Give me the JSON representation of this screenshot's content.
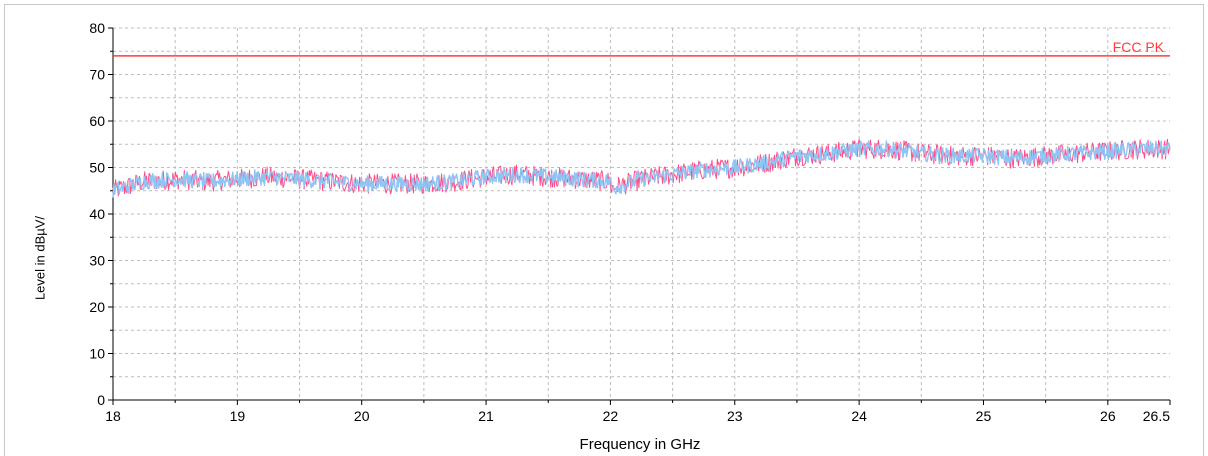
{
  "chart_data": {
    "type": "line",
    "title": "",
    "xlabel": "Frequency in GHz",
    "ylabel": "Level in dBµV/",
    "xlim": [
      18,
      26.5
    ],
    "ylim": [
      0,
      80
    ],
    "x_ticks": [
      18,
      19,
      20,
      21,
      22,
      23,
      24,
      25,
      26,
      26.5
    ],
    "y_ticks": [
      0,
      10,
      20,
      30,
      40,
      50,
      60,
      70,
      80
    ],
    "grid": true,
    "limit_line": {
      "name": "FCC PK",
      "value": 74,
      "color": "#ff3b3b"
    },
    "series": [
      {
        "color": "#ff4d88",
        "x": [
          18.0,
          18.25,
          18.5,
          18.75,
          19.0,
          19.25,
          19.5,
          19.75,
          20.0,
          20.25,
          20.5,
          20.75,
          21.0,
          21.25,
          21.5,
          21.75,
          22.0,
          22.01,
          22.25,
          22.5,
          22.75,
          23.0,
          23.25,
          23.5,
          23.75,
          24.0,
          24.25,
          24.5,
          24.75,
          25.0,
          25.25,
          25.5,
          25.75,
          26.0,
          26.25,
          26.5
        ],
        "y": [
          45,
          47,
          47.5,
          47,
          47.5,
          48,
          47.5,
          47,
          46.5,
          46.5,
          46.5,
          47,
          48,
          48.5,
          48,
          47.5,
          47,
          45.5,
          47.5,
          48.5,
          49.5,
          50,
          51,
          52.5,
          53,
          54,
          54,
          53,
          52.5,
          52.5,
          52,
          52.5,
          53,
          53.5,
          54,
          54
        ]
      },
      {
        "color": "#8ec5f5",
        "x": [
          18.0,
          18.25,
          18.5,
          18.75,
          19.0,
          19.25,
          19.5,
          19.75,
          20.0,
          20.25,
          20.5,
          20.75,
          21.0,
          21.25,
          21.5,
          21.75,
          22.0,
          22.01,
          22.25,
          22.5,
          22.75,
          23.0,
          23.25,
          23.5,
          23.75,
          24.0,
          24.25,
          24.5,
          24.75,
          25.0,
          25.25,
          25.5,
          25.75,
          26.0,
          26.25,
          26.5
        ],
        "y": [
          45,
          47,
          47.5,
          47,
          47.5,
          48,
          47.5,
          47,
          46.5,
          46.5,
          46.5,
          47,
          48,
          48.5,
          48,
          47.5,
          47,
          45.5,
          47.5,
          48.5,
          49.5,
          50,
          51,
          52.5,
          53,
          54,
          54,
          53,
          52.5,
          52.5,
          52,
          52.5,
          53,
          53.5,
          54,
          54
        ]
      }
    ]
  }
}
